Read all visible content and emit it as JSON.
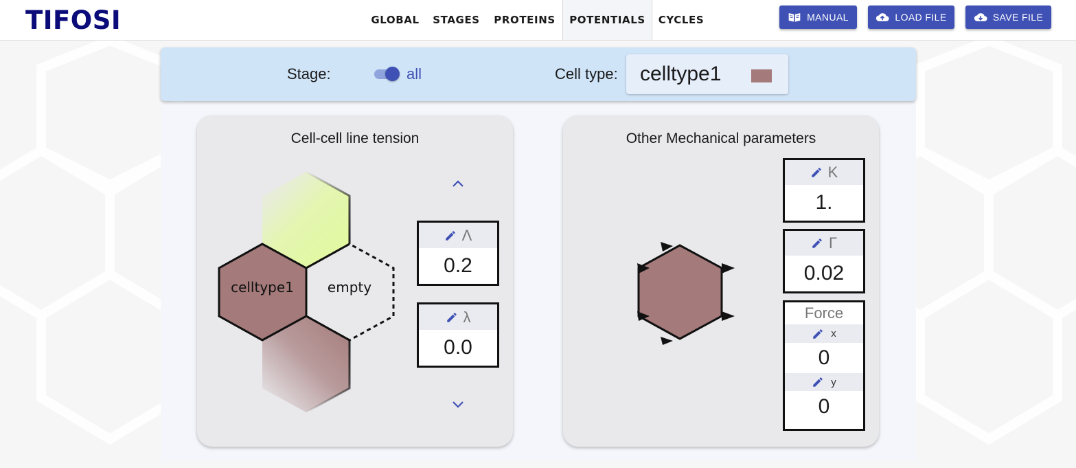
{
  "app": {
    "title": "TIFOSI"
  },
  "nav": {
    "tabs": [
      {
        "label": "GLOBAL",
        "active": false
      },
      {
        "label": "STAGES",
        "active": false
      },
      {
        "label": "PROTEINS",
        "active": false
      },
      {
        "label": "POTENTIALS",
        "active": true
      },
      {
        "label": "CYCLES",
        "active": false
      }
    ]
  },
  "buttons": {
    "manual": {
      "label": "MANUAL",
      "icon": "book-icon"
    },
    "load": {
      "label": "LOAD FILE",
      "icon": "cloud-upload-icon"
    },
    "save": {
      "label": "SAVE FILE",
      "icon": "cloud-download-icon"
    }
  },
  "stage": {
    "label": "Stage:",
    "value": "all",
    "toggle_on": true
  },
  "celltype": {
    "label": "Cell type:",
    "value": "celltype1",
    "color": "#a47a7a"
  },
  "tension": {
    "title": "Cell-cell line tension",
    "cell_label": "celltype1",
    "neighbor_label": "empty",
    "Lambda": {
      "symbol": "Λ",
      "value": "0.2"
    },
    "lambda": {
      "symbol": "λ",
      "value": "0.0"
    }
  },
  "mechanical": {
    "title": "Other Mechanical parameters",
    "K": {
      "symbol": "K",
      "value": "1."
    },
    "Gamma": {
      "symbol": "Γ",
      "value": "0.02"
    },
    "force": {
      "label": "Force",
      "x": {
        "symbol": "x",
        "value": "0"
      },
      "y": {
        "symbol": "y",
        "value": "0"
      }
    }
  },
  "colors": {
    "accent": "#3f51b5",
    "logo": "#0b0b7a",
    "cell": "#a47a7a",
    "highlight": "#e2fa9c",
    "stagebar": "#d0e4f8"
  }
}
